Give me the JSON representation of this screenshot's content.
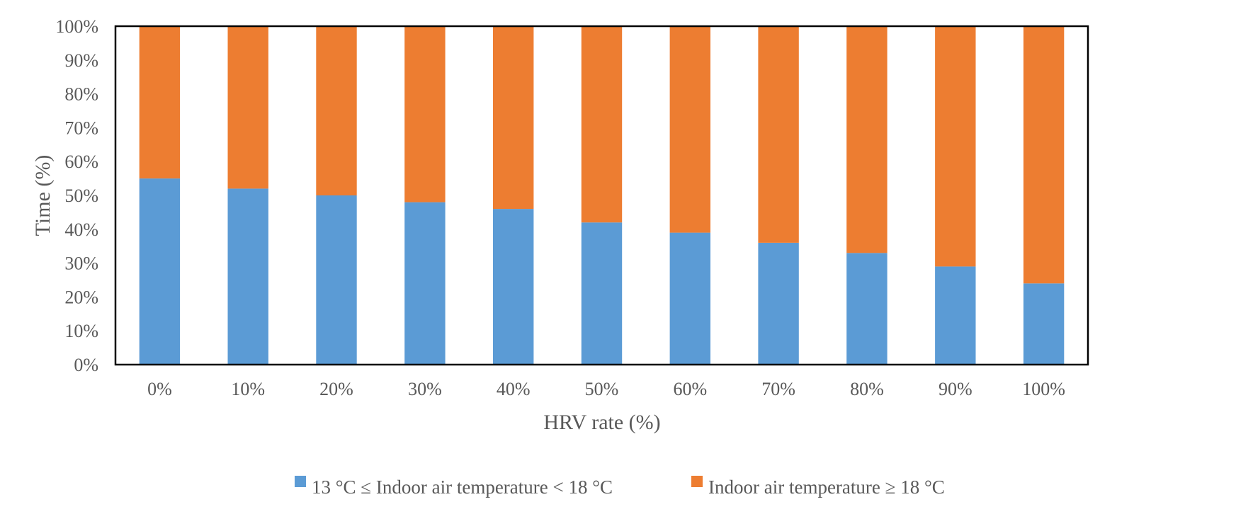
{
  "chart_data": {
    "type": "bar",
    "stacked": true,
    "percent_stacked": true,
    "categories": [
      "0%",
      "10%",
      "20%",
      "30%",
      "40%",
      "50%",
      "60%",
      "70%",
      "80%",
      "90%",
      "100%"
    ],
    "series": [
      {
        "name": "13 °C ≤ Indoor air temperature < 18 °C",
        "color": "#5B9BD5",
        "values": [
          55,
          52,
          50,
          48,
          46,
          42,
          39,
          36,
          33,
          29,
          24
        ]
      },
      {
        "name": "Indoor air temperature ≥ 18 °C",
        "color": "#ED7D31",
        "values": [
          45,
          48,
          50,
          52,
          54,
          58,
          61,
          64,
          67,
          71,
          76
        ]
      }
    ],
    "xlabel": "HRV rate (%)",
    "ylabel": "Time (%)",
    "ylim": [
      0,
      100
    ],
    "yticks": [
      "0%",
      "10%",
      "20%",
      "30%",
      "40%",
      "50%",
      "60%",
      "70%",
      "80%",
      "90%",
      "100%"
    ],
    "grid": false,
    "legend_position": "bottom"
  }
}
